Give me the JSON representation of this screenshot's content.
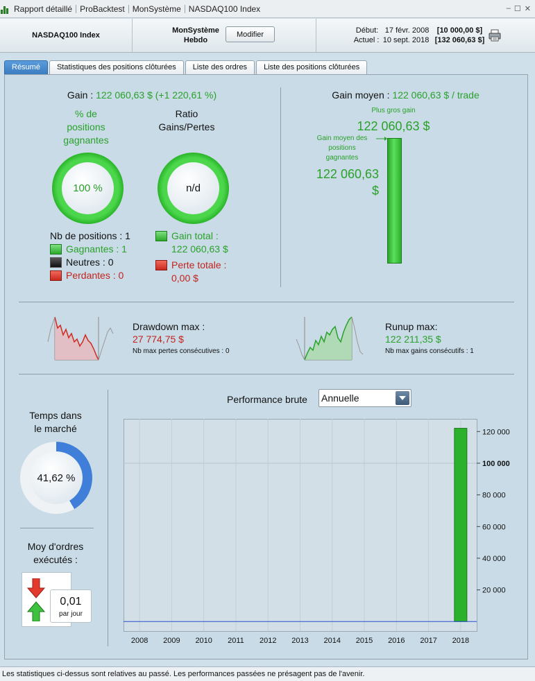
{
  "window": {
    "breadcrumbs": [
      "Rapport détaillé",
      "ProBacktest",
      "MonSystème",
      "NASDAQ100 Index"
    ],
    "controls": [
      "–",
      "☐",
      "✕"
    ]
  },
  "header": {
    "instrument": "NASDAQ100 Index",
    "system_line1": "MonSystème",
    "system_line2": "Hebdo",
    "modify_label": "Modifier",
    "start_label": "Début:",
    "start_date": "17 févr. 2008",
    "start_value": "[10 000,00 $]",
    "current_label": "Actuel :",
    "current_date": "10 sept. 2018",
    "current_value": "[132 060,63 $]"
  },
  "tabs": [
    {
      "label": "Résumé",
      "active": true
    },
    {
      "label": "Statistiques des positions clôturées",
      "active": false
    },
    {
      "label": "Liste des ordres",
      "active": false
    },
    {
      "label": "Liste des positions clôturées",
      "active": false
    }
  ],
  "summary": {
    "gain_label": "Gain :",
    "gain_value": "122 060,63 $ (+1 220,61 %)",
    "pct_title_1": "% de",
    "pct_title_2": "positions",
    "pct_title_3": "gagnantes",
    "pct_value": "100 %",
    "ratio_title_1": "Ratio",
    "ratio_title_2": "Gains/Pertes",
    "ratio_value": "n/d",
    "positions_label": "Nb de positions : 1",
    "winners_label": "Gagnantes : 1",
    "neutral_label": "Neutres : 0",
    "losers_label": "Perdantes : 0",
    "total_gain_label": "Gain total :",
    "total_gain_value": "122 060,63 $",
    "total_loss_label": "Perte totale :",
    "total_loss_value": "0,00 $",
    "avg_gain_label": "Gain moyen :",
    "avg_gain_value": "122 060,63 $ / trade",
    "biggest_gain_label": "Plus gros gain",
    "biggest_gain_value": "122 060,63 $",
    "avg_winning_label_1": "Gain moyen des",
    "avg_winning_label_2": "positions",
    "avg_winning_label_3": "gagnantes",
    "avg_winning_value_1": "122 060,63",
    "avg_winning_value_2": "$"
  },
  "drawdown": {
    "title": "Drawdown max :",
    "value": "27 774,75 $",
    "sub": "Nb max pertes consécutives : 0"
  },
  "runup": {
    "title": "Runup max:",
    "value": "122 211,35 $",
    "sub": "Nb max gains consécutifs : 1"
  },
  "time_in_market": {
    "title_1": "Temps dans",
    "title_2": "le marché",
    "value": "41,62 %",
    "fraction": 0.4162
  },
  "orders": {
    "title_1": "Moy d'ordres",
    "title_2": "exécutés :",
    "value": "0,01",
    "unit": "par jour"
  },
  "performance": {
    "title": "Performance brute",
    "period_selected": "Annuelle"
  },
  "colors": {
    "gain": "#2aa12a",
    "loss": "#c4231d",
    "accent": "#3b7cc1",
    "time_ring": "#3f7fd9"
  },
  "chart_data": {
    "type": "bar",
    "categories": [
      "2008",
      "2009",
      "2010",
      "2011",
      "2012",
      "2013",
      "2014",
      "2015",
      "2016",
      "2017",
      "2018"
    ],
    "series": [
      {
        "values": [
          0,
          0,
          0,
          0,
          0,
          0,
          0,
          0,
          0,
          0,
          122060.63
        ]
      }
    ],
    "title": "Performance brute",
    "y_ticks": [
      "20 000",
      "40 000",
      "60 000",
      "80 000",
      "100 000",
      "120 000"
    ],
    "y_tick_values": [
      20000,
      40000,
      60000,
      80000,
      100000,
      120000
    ],
    "bold_tick": "100 000",
    "ylim": [
      -6000,
      128000
    ],
    "grid": "horizontal at 100 000 and vertical at each category",
    "legend": "none",
    "bar_color": "#2cb12c",
    "baseline_color": "#2b4fd0"
  },
  "footer": {
    "disclaimer": "Les statistiques ci-dessus sont relatives au passé. Les performances passées ne présagent pas de l'avenir."
  }
}
